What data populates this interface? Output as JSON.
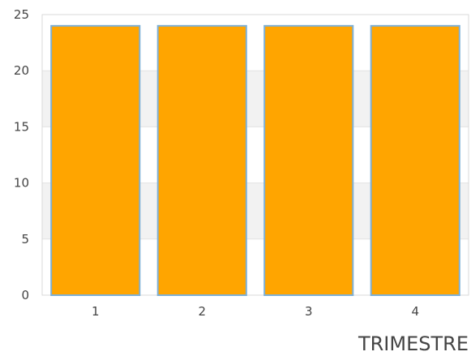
{
  "chart_data": {
    "type": "bar",
    "categories": [
      "1",
      "2",
      "3",
      "4"
    ],
    "values": [
      24,
      24,
      24,
      24
    ],
    "xlabel": "TRIMESTRE",
    "ylabel": "",
    "ylim": [
      0,
      25
    ],
    "yticks": [
      0,
      5,
      10,
      15,
      20,
      25
    ],
    "grid": true,
    "legend": "none",
    "colors": {
      "bar_fill": "#FFA500",
      "bar_stroke": "#7EB0D6",
      "band_alt": "#F2F2F2",
      "grid_line": "#E2E2E2",
      "plot_border": "#D9D9D9",
      "text": "#444444"
    }
  }
}
